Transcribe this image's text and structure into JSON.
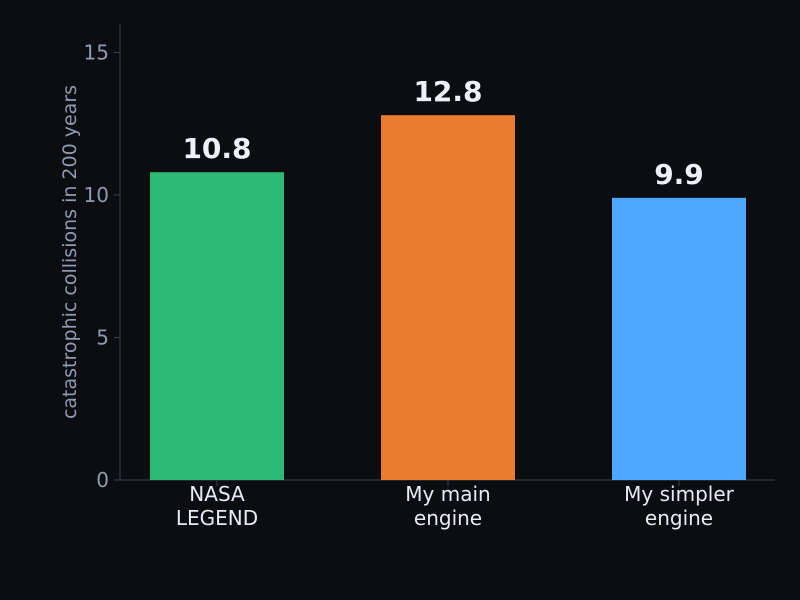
{
  "chart_data": {
    "type": "bar",
    "title": "",
    "xlabel": "",
    "ylabel": "catastrophic collisions in 200 years",
    "ylim": [
      0,
      16
    ],
    "yticks": [
      0,
      5,
      10,
      15
    ],
    "grid": false,
    "categories": [
      [
        "NASA",
        "LEGEND"
      ],
      [
        "My main",
        "engine"
      ],
      [
        "My simpler",
        "engine"
      ]
    ],
    "values": [
      10.8,
      12.8,
      9.9
    ],
    "value_labels": [
      "10.8",
      "12.8",
      "9.9"
    ],
    "colors": [
      "#2db875",
      "#e97c2f",
      "#4da8ff"
    ]
  }
}
